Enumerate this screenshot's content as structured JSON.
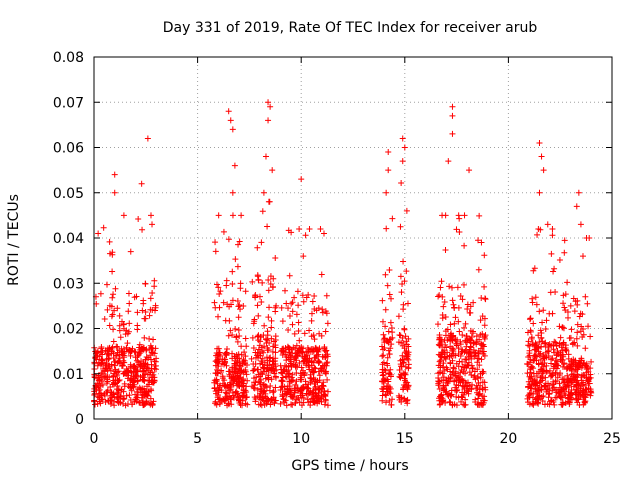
{
  "chart_data": {
    "type": "scatter",
    "title": "Day 331 of 2019, Rate Of TEC Index for receiver arub",
    "xlabel": "GPS time / hours",
    "ylabel": "ROTI / TECUs",
    "xlim": [
      0,
      25
    ],
    "ylim": [
      0,
      0.08
    ],
    "x_ticks": [
      "0",
      "5",
      "10",
      "15",
      "20",
      "25"
    ],
    "y_ticks": [
      "0",
      "0.01",
      "0.02",
      "0.03",
      "0.04",
      "0.05",
      "0.06",
      "0.07",
      "0.08"
    ],
    "grid": true,
    "marker": "+",
    "color": "#ff0000",
    "clusters": [
      {
        "x_range": [
          0.0,
          3.0
        ],
        "y_median": 0.01,
        "y_top": 0.045,
        "outliers": [
          [
            1.0,
            0.054
          ],
          [
            1.0,
            0.05
          ],
          [
            2.3,
            0.052
          ],
          [
            2.6,
            0.062
          ],
          [
            0.2,
            0.041
          ],
          [
            2.8,
            0.043
          ]
        ]
      },
      {
        "x_range": [
          5.8,
          7.4
        ],
        "y_median": 0.009,
        "y_top": 0.045,
        "outliers": [
          [
            6.5,
            0.068
          ],
          [
            6.6,
            0.066
          ],
          [
            6.7,
            0.064
          ],
          [
            6.8,
            0.056
          ],
          [
            6.7,
            0.05
          ],
          [
            7.1,
            0.045
          ]
        ]
      },
      {
        "x_range": [
          7.6,
          8.8
        ],
        "y_median": 0.012,
        "y_top": 0.048,
        "outliers": [
          [
            8.4,
            0.07
          ],
          [
            8.5,
            0.069
          ],
          [
            8.4,
            0.066
          ],
          [
            8.3,
            0.058
          ],
          [
            8.2,
            0.05
          ],
          [
            8.6,
            0.055
          ]
        ]
      },
      {
        "x_range": [
          9.0,
          11.3
        ],
        "y_median": 0.01,
        "y_top": 0.042,
        "outliers": [
          [
            10.0,
            0.053
          ],
          [
            9.9,
            0.042
          ],
          [
            11.1,
            0.041
          ],
          [
            10.1,
            0.036
          ]
        ]
      },
      {
        "x_range": [
          13.9,
          14.4
        ],
        "y_median": 0.012,
        "y_top": 0.05,
        "outliers": [
          [
            14.2,
            0.059
          ],
          [
            14.2,
            0.055
          ],
          [
            14.1,
            0.05
          ]
        ]
      },
      {
        "x_range": [
          14.7,
          15.2
        ],
        "y_median": 0.012,
        "y_top": 0.055,
        "outliers": [
          [
            14.9,
            0.062
          ],
          [
            15.0,
            0.06
          ],
          [
            14.9,
            0.057
          ],
          [
            15.1,
            0.046
          ]
        ]
      },
      {
        "x_range": [
          16.6,
          18.9
        ],
        "y_median": 0.012,
        "y_top": 0.045,
        "outliers": [
          [
            17.3,
            0.069
          ],
          [
            17.3,
            0.067
          ],
          [
            17.3,
            0.063
          ],
          [
            17.1,
            0.057
          ],
          [
            18.1,
            0.055
          ],
          [
            17.6,
            0.045
          ],
          [
            18.7,
            0.039
          ]
        ]
      },
      {
        "x_range": [
          20.9,
          22.8
        ],
        "y_median": 0.011,
        "y_top": 0.042,
        "outliers": [
          [
            21.5,
            0.061
          ],
          [
            21.6,
            0.058
          ],
          [
            21.7,
            0.055
          ],
          [
            21.5,
            0.05
          ],
          [
            21.9,
            0.043
          ]
        ]
      },
      {
        "x_range": [
          22.8,
          24.0
        ],
        "y_median": 0.008,
        "y_top": 0.04,
        "outliers": [
          [
            23.4,
            0.05
          ],
          [
            23.3,
            0.047
          ],
          [
            23.5,
            0.043
          ],
          [
            23.9,
            0.04
          ],
          [
            23.6,
            0.036
          ]
        ]
      }
    ]
  }
}
